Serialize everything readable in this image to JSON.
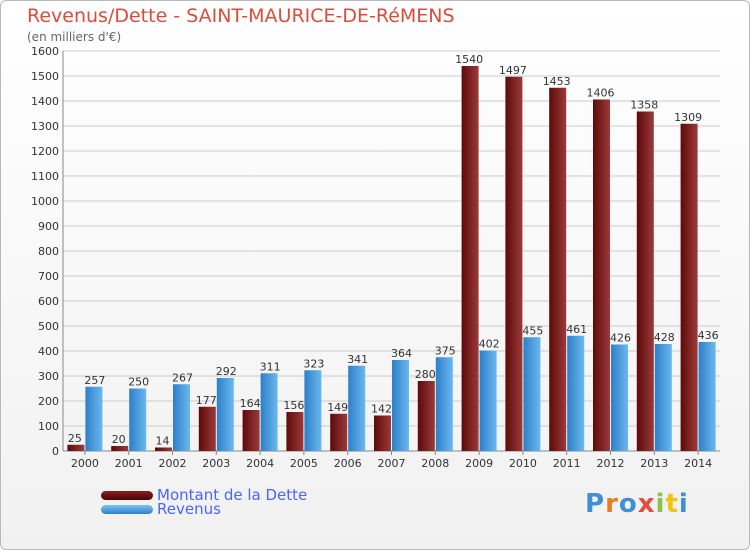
{
  "title": "Revenus/Dette - SAINT-MAURICE-DE-RéMENS",
  "subtitle": "(en milliers d'€)",
  "logo_text": "Proxiti",
  "colors": {
    "debt_dark": "#5e0a0a",
    "debt_light": "#9b3a3a",
    "revenue_dark": "#2d7fc8",
    "revenue_light": "#6bb8f0",
    "grid": "#cccccc",
    "title": "#dd4b3b",
    "legend_text": "#4a64ff"
  },
  "chart_data": {
    "type": "bar",
    "title": "Revenus/Dette - SAINT-MAURICE-DE-RéMENS",
    "subtitle": "(en milliers d'€)",
    "categories": [
      "2000",
      "2001",
      "2002",
      "2003",
      "2004",
      "2005",
      "2006",
      "2007",
      "2008",
      "2009",
      "2010",
      "2011",
      "2012",
      "2013",
      "2014"
    ],
    "series": [
      {
        "name": "Montant de la Dette",
        "values": [
          25,
          20,
          14,
          177,
          164,
          156,
          149,
          142,
          280,
          1540,
          1497,
          1453,
          1406,
          1358,
          1309
        ]
      },
      {
        "name": "Revenus",
        "values": [
          257,
          250,
          267,
          292,
          311,
          323,
          341,
          364,
          375,
          402,
          455,
          461,
          426,
          428,
          436
        ]
      }
    ],
    "ylim": [
      0,
      1600
    ],
    "yticks": [
      0,
      100,
      200,
      300,
      400,
      500,
      600,
      700,
      800,
      900,
      1000,
      1100,
      1200,
      1300,
      1400,
      1500,
      1600
    ],
    "grid": true,
    "legend_position": "bottom-left"
  }
}
